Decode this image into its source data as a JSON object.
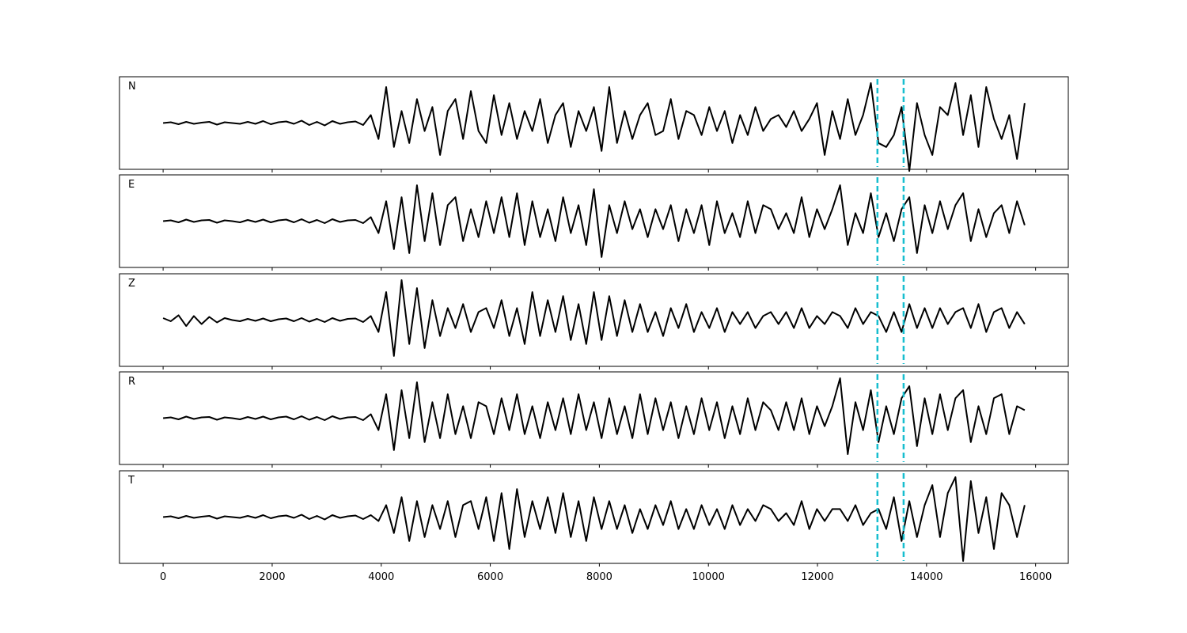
{
  "chart_data": {
    "type": "line",
    "title": "",
    "xlabel": "",
    "ylabel": "",
    "xlim": [
      -800,
      16600
    ],
    "xticks": [
      0,
      2000,
      4000,
      6000,
      8000,
      10000,
      12000,
      14000,
      16000
    ],
    "xtick_labels": [
      "0",
      "2000",
      "4000",
      "6000",
      "8000",
      "10000",
      "12000",
      "14000",
      "16000"
    ],
    "x_range": [
      0,
      15800
    ],
    "grid": false,
    "legend": "none",
    "picks": [
      13100,
      13580
    ],
    "pick_color": "#17becf",
    "trace_color": "#000000",
    "series": [
      {
        "name": "N",
        "values": [
          0,
          0.02,
          -0.03,
          0.03,
          -0.02,
          0.01,
          0.03,
          -0.04,
          0.02,
          0,
          -0.02,
          0.03,
          -0.02,
          0.05,
          -0.03,
          0.02,
          0.04,
          -0.02,
          0.06,
          -0.05,
          0.03,
          -0.06,
          0.05,
          -0.02,
          0.02,
          0.04,
          -0.05,
          0.2,
          -0.4,
          0.9,
          -0.6,
          0.3,
          -0.5,
          0.6,
          -0.2,
          0.4,
          -0.8,
          0.3,
          0.6,
          -0.4,
          0.8,
          -0.2,
          -0.5,
          0.7,
          -0.3,
          0.5,
          -0.4,
          0.3,
          -0.2,
          0.6,
          -0.5,
          0.2,
          0.5,
          -0.6,
          0.3,
          -0.2,
          0.4,
          -0.7,
          0.9,
          -0.5,
          0.3,
          -0.4,
          0.2,
          0.5,
          -0.3,
          -0.2,
          0.6,
          -0.4,
          0.3,
          0.2,
          -0.3,
          0.4,
          -0.2,
          0.3,
          -0.5,
          0.2,
          -0.3,
          0.4,
          -0.2,
          0.1,
          0.2,
          -0.1,
          0.3,
          -0.2,
          0.1,
          0.5,
          -0.8,
          0.3,
          -0.4,
          0.6,
          -0.3,
          0.2,
          1.0,
          -0.5,
          -0.6,
          -0.3,
          0.4,
          -1.2,
          0.5,
          -0.3,
          -0.8,
          0.4,
          0.2,
          1.0,
          -0.3,
          0.7,
          -0.6,
          0.9,
          0.1,
          -0.4,
          0.2,
          -0.9,
          0.5
        ],
        "tag": "N"
      },
      {
        "name": "E",
        "values": [
          0,
          0.02,
          -0.03,
          0.04,
          -0.02,
          0.02,
          0.03,
          -0.04,
          0.02,
          0,
          -0.03,
          0.03,
          -0.02,
          0.04,
          -0.03,
          0.02,
          0.04,
          -0.03,
          0.05,
          -0.04,
          0.03,
          -0.05,
          0.05,
          -0.02,
          0.02,
          0.03,
          -0.05,
          0.1,
          -0.3,
          0.5,
          -0.7,
          0.6,
          -0.8,
          0.9,
          -0.5,
          0.7,
          -0.6,
          0.4,
          0.6,
          -0.5,
          0.3,
          -0.4,
          0.5,
          -0.3,
          0.6,
          -0.4,
          0.7,
          -0.6,
          0.5,
          -0.4,
          0.3,
          -0.5,
          0.6,
          -0.3,
          0.4,
          -0.6,
          0.8,
          -0.9,
          0.4,
          -0.3,
          0.5,
          -0.2,
          0.3,
          -0.4,
          0.3,
          -0.2,
          0.4,
          -0.5,
          0.3,
          -0.3,
          0.4,
          -0.6,
          0.5,
          -0.3,
          0.2,
          -0.4,
          0.5,
          -0.3,
          0.4,
          0.3,
          -0.2,
          0.2,
          -0.3,
          0.6,
          -0.4,
          0.3,
          -0.2,
          0.3,
          0.9,
          -0.6,
          0.2,
          -0.3,
          0.7,
          -0.4,
          0.2,
          -0.5,
          0.3,
          0.6,
          -0.8,
          0.4,
          -0.3,
          0.5,
          -0.2,
          0.4,
          0.7,
          -0.5,
          0.3,
          -0.4,
          0.2,
          0.4,
          -0.3,
          0.5,
          -0.1
        ],
        "tag": "E"
      },
      {
        "name": "Z",
        "values": [
          0.05,
          -0.03,
          0.12,
          -0.15,
          0.1,
          -0.1,
          0.08,
          -0.06,
          0.05,
          0,
          -0.03,
          0.03,
          -0.02,
          0.04,
          -0.03,
          0.02,
          0.04,
          -0.03,
          0.05,
          -0.04,
          0.03,
          -0.05,
          0.05,
          -0.02,
          0.03,
          0.04,
          -0.05,
          0.1,
          -0.3,
          0.7,
          -0.9,
          1.0,
          -0.6,
          0.8,
          -0.7,
          0.5,
          -0.4,
          0.3,
          -0.2,
          0.4,
          -0.3,
          0.2,
          0.3,
          -0.2,
          0.5,
          -0.4,
          0.3,
          -0.6,
          0.7,
          -0.4,
          0.5,
          -0.3,
          0.6,
          -0.5,
          0.4,
          -0.6,
          0.7,
          -0.5,
          0.6,
          -0.4,
          0.5,
          -0.3,
          0.4,
          -0.3,
          0.2,
          -0.4,
          0.3,
          -0.2,
          0.4,
          -0.3,
          0.2,
          -0.2,
          0.3,
          -0.3,
          0.2,
          -0.1,
          0.2,
          -0.2,
          0.1,
          0.2,
          -0.1,
          0.2,
          -0.2,
          0.3,
          -0.2,
          0.1,
          -0.1,
          0.2,
          0.1,
          -0.2,
          0.3,
          -0.1,
          0.2,
          0.1,
          -0.3,
          0.2,
          -0.3,
          0.4,
          -0.2,
          0.3,
          -0.2,
          0.3,
          -0.1,
          0.2,
          0.3,
          -0.2,
          0.4,
          -0.3,
          0.2,
          0.3,
          -0.2,
          0.2,
          -0.1
        ],
        "tag": "Z"
      },
      {
        "name": "R",
        "values": [
          0,
          0.02,
          -0.03,
          0.04,
          -0.02,
          0.02,
          0.03,
          -0.04,
          0.02,
          0,
          -0.03,
          0.03,
          -0.02,
          0.04,
          -0.03,
          0.02,
          0.04,
          -0.03,
          0.05,
          -0.04,
          0.03,
          -0.05,
          0.05,
          -0.02,
          0.02,
          0.03,
          -0.05,
          0.1,
          -0.3,
          0.6,
          -0.8,
          0.7,
          -0.5,
          0.9,
          -0.6,
          0.4,
          -0.5,
          0.6,
          -0.4,
          0.3,
          -0.5,
          0.4,
          0.3,
          -0.4,
          0.5,
          -0.3,
          0.6,
          -0.4,
          0.3,
          -0.5,
          0.4,
          -0.3,
          0.5,
          -0.4,
          0.6,
          -0.3,
          0.4,
          -0.5,
          0.5,
          -0.4,
          0.3,
          -0.5,
          0.6,
          -0.4,
          0.5,
          -0.3,
          0.4,
          -0.5,
          0.3,
          -0.4,
          0.5,
          -0.3,
          0.4,
          -0.5,
          0.3,
          -0.4,
          0.5,
          -0.3,
          0.4,
          0.2,
          -0.3,
          0.4,
          -0.3,
          0.5,
          -0.4,
          0.3,
          -0.2,
          0.3,
          1.0,
          -0.9,
          0.4,
          -0.3,
          0.7,
          -0.6,
          0.3,
          -0.4,
          0.5,
          0.8,
          -0.7,
          0.5,
          -0.4,
          0.6,
          -0.3,
          0.5,
          0.7,
          -0.6,
          0.3,
          -0.4,
          0.5,
          0.6,
          -0.4,
          0.3,
          0.2
        ],
        "tag": "R"
      },
      {
        "name": "T",
        "values": [
          0,
          0.02,
          -0.03,
          0.03,
          -0.02,
          0.01,
          0.03,
          -0.04,
          0.02,
          0,
          -0.02,
          0.03,
          -0.02,
          0.05,
          -0.03,
          0.02,
          0.04,
          -0.02,
          0.06,
          -0.05,
          0.03,
          -0.06,
          0.05,
          -0.02,
          0.02,
          0.04,
          -0.05,
          0.05,
          -0.1,
          0.3,
          -0.4,
          0.5,
          -0.6,
          0.4,
          -0.5,
          0.3,
          -0.3,
          0.4,
          -0.5,
          0.3,
          0.4,
          -0.3,
          0.5,
          -0.6,
          0.6,
          -0.8,
          0.7,
          -0.5,
          0.4,
          -0.3,
          0.5,
          -0.4,
          0.6,
          -0.5,
          0.4,
          -0.6,
          0.5,
          -0.3,
          0.4,
          -0.3,
          0.3,
          -0.4,
          0.2,
          -0.3,
          0.3,
          -0.2,
          0.4,
          -0.3,
          0.2,
          -0.3,
          0.3,
          -0.2,
          0.2,
          -0.3,
          0.3,
          -0.2,
          0.2,
          -0.1,
          0.3,
          0.2,
          -0.1,
          0.1,
          -0.2,
          0.4,
          -0.3,
          0.2,
          -0.1,
          0.2,
          0.2,
          -0.1,
          0.3,
          -0.2,
          0.1,
          0.2,
          -0.3,
          0.5,
          -0.6,
          0.4,
          -0.5,
          0.3,
          0.8,
          -0.5,
          0.6,
          1.0,
          -1.1,
          0.9,
          -0.4,
          0.5,
          -0.8,
          0.6,
          0.3,
          -0.5,
          0.3
        ],
        "tag": "T"
      }
    ]
  }
}
